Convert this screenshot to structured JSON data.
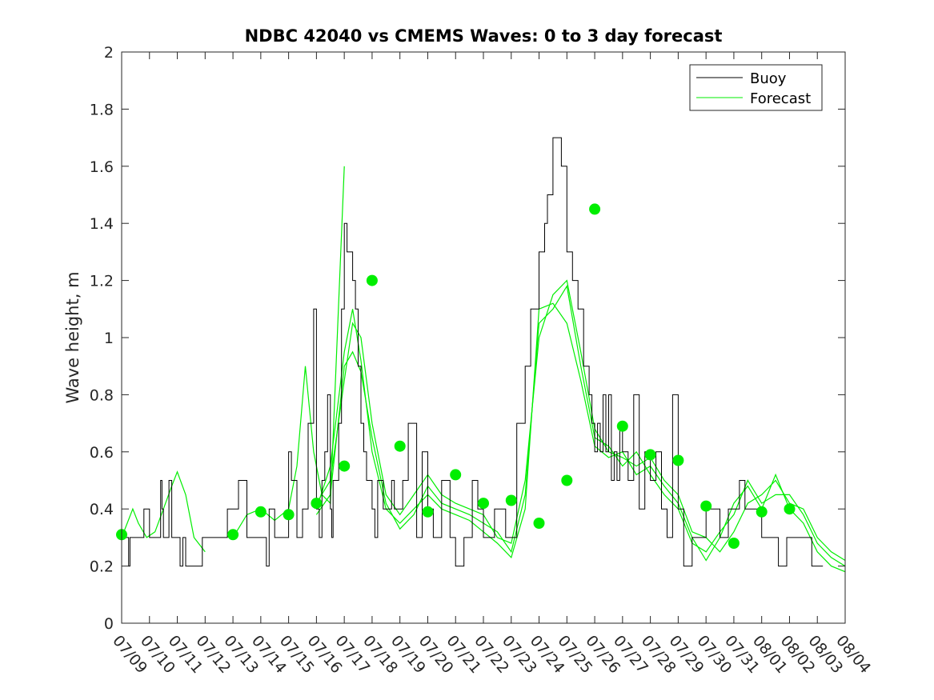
{
  "chart_data": {
    "type": "line",
    "title": "NDBC 42040 vs CMEMS Waves: 0 to 3 day forecast",
    "xlabel": "",
    "ylabel": "Wave height, m",
    "ylim": [
      0,
      2
    ],
    "yticks": [
      "0",
      "0.2",
      "0.4",
      "0.6",
      "0.8",
      "1",
      "1.2",
      "1.4",
      "1.6",
      "1.8",
      "2"
    ],
    "xlim": [
      0,
      26
    ],
    "xtick_labels": [
      "07/09",
      "07/10",
      "07/11",
      "07/12",
      "07/13",
      "07/14",
      "07/15",
      "07/16",
      "07/17",
      "07/18",
      "07/19",
      "07/20",
      "07/21",
      "07/22",
      "07/23",
      "07/24",
      "07/25",
      "07/26",
      "07/27",
      "07/28",
      "07/29",
      "07/30",
      "07/31",
      "08/01",
      "08/02",
      "08/03",
      "08/04"
    ],
    "grid": false,
    "legend_position": "top-right",
    "legend": [
      "Buoy",
      "Forecast"
    ],
    "colors": {
      "buoy": "#000000",
      "forecast": "#00ee00",
      "marker": "#00ee00"
    },
    "buoy": {
      "x": [
        0,
        0.25,
        0.3,
        0.6,
        0.8,
        1.0,
        1.2,
        1.4,
        1.45,
        1.5,
        1.7,
        1.8,
        2.0,
        2.1,
        2.2,
        2.3,
        2.4,
        2.6,
        2.9,
        3.0,
        3.2,
        3.5,
        3.7,
        3.8,
        4.2,
        4.5,
        5.0,
        5.2,
        5.3,
        5.5,
        6.0,
        6.1,
        6.3,
        6.5,
        6.7,
        6.9,
        7.0,
        7.1,
        7.2,
        7.3,
        7.4,
        7.5,
        7.55,
        7.6,
        7.7,
        7.8,
        7.9,
        8.0,
        8.1,
        8.2,
        8.3,
        8.4,
        8.5,
        8.6,
        8.7,
        8.8,
        8.9,
        9.0,
        9.1,
        9.15,
        9.2,
        9.3,
        9.4,
        9.5,
        9.6,
        9.7,
        9.8,
        9.9,
        10.0,
        10.1,
        10.3,
        10.6,
        10.8,
        11.0,
        11.2,
        11.5,
        11.8,
        12.0,
        12.3,
        12.6,
        12.8,
        13.0,
        13.2,
        13.4,
        13.6,
        13.8,
        14.0,
        14.2,
        14.5,
        14.7,
        15.0,
        15.2,
        15.3,
        15.5,
        15.8,
        16.0,
        16.2,
        16.4,
        16.6,
        16.8,
        16.9,
        17.0,
        17.1,
        17.2,
        17.3,
        17.4,
        17.5,
        17.6,
        17.7,
        17.8,
        17.9,
        18.0,
        18.2,
        18.4,
        18.6,
        18.8,
        19.0,
        19.2,
        19.4,
        19.6,
        19.8,
        20.0,
        20.2,
        20.5,
        20.8,
        21.0,
        21.2,
        21.5,
        21.8,
        22.0,
        22.2,
        22.4,
        22.6,
        22.8,
        23.0,
        23.3,
        23.6,
        23.9,
        24.2,
        24.5,
        24.8,
        25.0,
        25.2
      ],
      "y": [
        0.3,
        0.2,
        0.3,
        0.3,
        0.4,
        0.3,
        0.3,
        0.5,
        0.4,
        0.3,
        0.5,
        0.3,
        0.3,
        0.2,
        0.3,
        0.2,
        0.2,
        0.2,
        0.3,
        0.3,
        0.3,
        0.3,
        0.3,
        0.4,
        0.5,
        0.3,
        0.3,
        0.2,
        0.4,
        0.3,
        0.6,
        0.5,
        0.3,
        0.4,
        0.7,
        1.1,
        0.4,
        0.3,
        0.5,
        0.6,
        0.8,
        0.4,
        0.3,
        0.5,
        0.5,
        0.7,
        1.1,
        1.4,
        1.3,
        1.3,
        1.2,
        1.1,
        0.9,
        0.7,
        0.6,
        0.5,
        0.5,
        0.4,
        0.3,
        0.3,
        0.5,
        0.5,
        0.4,
        0.4,
        0.4,
        0.5,
        0.4,
        0.4,
        0.4,
        0.5,
        0.7,
        0.3,
        0.6,
        0.4,
        0.3,
        0.5,
        0.3,
        0.2,
        0.3,
        0.5,
        0.4,
        0.3,
        0.3,
        0.4,
        0.4,
        0.3,
        0.3,
        0.7,
        0.9,
        1.1,
        1.3,
        1.4,
        1.5,
        1.7,
        1.6,
        1.3,
        1.2,
        1.1,
        0.9,
        0.8,
        0.7,
        0.6,
        0.7,
        0.6,
        0.8,
        0.6,
        0.8,
        0.5,
        0.6,
        0.5,
        0.7,
        0.6,
        0.5,
        0.8,
        0.4,
        0.6,
        0.5,
        0.6,
        0.4,
        0.3,
        0.8,
        0.4,
        0.2,
        0.3,
        0.3,
        0.4,
        0.4,
        0.3,
        0.4,
        0.4,
        0.5,
        0.4,
        0.4,
        0.4,
        0.3,
        0.3,
        0.2,
        0.3,
        0.3,
        0.3,
        0.2,
        0.2,
        0.2
      ],
      "stepped": true
    },
    "forecast_series": [
      {
        "x": [
          0,
          0.4,
          0.6,
          0.9,
          1.2,
          1.5,
          1.8,
          2.0,
          2.3,
          2.6,
          3.0
        ],
        "y": [
          0.3,
          0.4,
          0.35,
          0.3,
          0.32,
          0.4,
          0.48,
          0.53,
          0.45,
          0.3,
          0.25
        ]
      },
      {
        "x": [
          4,
          4.5,
          5,
          5.5,
          6.0,
          6.3,
          6.6,
          6.9,
          7.2,
          7.5,
          8.0
        ],
        "y": [
          0.3,
          0.38,
          0.4,
          0.36,
          0.4,
          0.55,
          0.9,
          0.6,
          0.45,
          0.42,
          1.6
        ]
      },
      {
        "x": [
          7.0,
          7.5,
          8.0,
          8.3,
          8.6,
          9.0,
          9.5,
          10.0,
          10.5,
          11.0,
          11.5,
          12.0,
          12.5,
          13.0,
          13.5,
          14.0,
          14.5,
          15.0,
          15.5,
          16.0,
          16.5,
          17.0,
          17.5,
          18.0,
          18.5,
          19.0,
          19.5,
          20.0,
          20.5,
          21.0,
          21.5,
          22.0,
          22.5,
          23.0,
          23.5,
          24.0,
          24.5,
          25.0,
          25.5,
          26.0
        ],
        "y": [
          0.42,
          0.5,
          0.85,
          1.05,
          1.0,
          0.7,
          0.45,
          0.38,
          0.45,
          0.52,
          0.45,
          0.42,
          0.4,
          0.38,
          0.3,
          0.28,
          0.5,
          1.0,
          1.15,
          1.2,
          0.95,
          0.68,
          0.6,
          0.58,
          0.55,
          0.58,
          0.5,
          0.45,
          0.32,
          0.3,
          0.25,
          0.32,
          0.42,
          0.45,
          0.5,
          0.42,
          0.4,
          0.3,
          0.25,
          0.22
        ]
      },
      {
        "x": [
          7.0,
          7.5,
          8.0,
          8.3,
          8.6,
          9.0,
          9.5,
          10.0,
          10.5,
          11.0,
          11.5,
          12.0,
          12.5,
          13.0,
          13.5,
          14.0,
          14.5,
          15.0,
          15.5,
          16.0,
          16.5,
          17.0,
          17.5,
          18.0,
          18.5,
          19.0,
          19.5,
          20.0,
          20.5,
          21.0,
          21.5,
          22.0,
          22.5,
          23.0,
          23.5,
          24.0,
          24.5,
          25.0,
          25.5,
          26.0
        ],
        "y": [
          0.38,
          0.45,
          0.9,
          0.95,
          0.88,
          0.65,
          0.42,
          0.33,
          0.38,
          0.48,
          0.42,
          0.4,
          0.38,
          0.35,
          0.32,
          0.25,
          0.45,
          1.05,
          1.1,
          1.18,
          0.9,
          0.65,
          0.62,
          0.55,
          0.6,
          0.52,
          0.45,
          0.4,
          0.28,
          0.25,
          0.32,
          0.38,
          0.5,
          0.42,
          0.45,
          0.45,
          0.38,
          0.28,
          0.23,
          0.2
        ]
      },
      {
        "x": [
          7.0,
          7.5,
          8.0,
          8.3,
          8.6,
          9.0,
          9.5,
          10.0,
          10.5,
          11.0,
          11.5,
          12.0,
          12.5,
          13.0,
          13.5,
          14.0,
          14.5,
          15.0,
          15.5,
          16.0,
          16.5,
          17.0,
          17.5,
          18.0,
          18.5,
          19.0,
          19.5,
          20.0,
          20.5,
          21.0,
          21.5,
          22.0,
          22.5,
          23.0,
          23.5,
          24.0,
          24.5,
          25.0,
          25.5,
          26.0
        ],
        "y": [
          0.4,
          0.55,
          0.95,
          1.1,
          0.92,
          0.6,
          0.4,
          0.35,
          0.4,
          0.45,
          0.4,
          0.38,
          0.36,
          0.32,
          0.28,
          0.23,
          0.4,
          1.1,
          1.12,
          1.05,
          0.85,
          0.62,
          0.58,
          0.6,
          0.52,
          0.55,
          0.48,
          0.42,
          0.3,
          0.22,
          0.3,
          0.42,
          0.48,
          0.4,
          0.52,
          0.4,
          0.35,
          0.25,
          0.2,
          0.18
        ]
      }
    ],
    "forecast_markers": {
      "x": [
        0,
        4,
        5,
        6,
        7,
        8,
        9,
        10,
        11,
        12,
        13,
        14,
        15,
        16,
        17,
        18,
        19,
        20,
        21,
        22,
        23,
        24
      ],
      "y": [
        0.31,
        0.31,
        0.39,
        0.38,
        0.42,
        0.55,
        1.2,
        0.62,
        0.39,
        0.52,
        0.42,
        0.43,
        0.35,
        0.5,
        1.45,
        0.69,
        0.59,
        0.57,
        0.41,
        0.28,
        0.39,
        0.4
      ]
    }
  }
}
